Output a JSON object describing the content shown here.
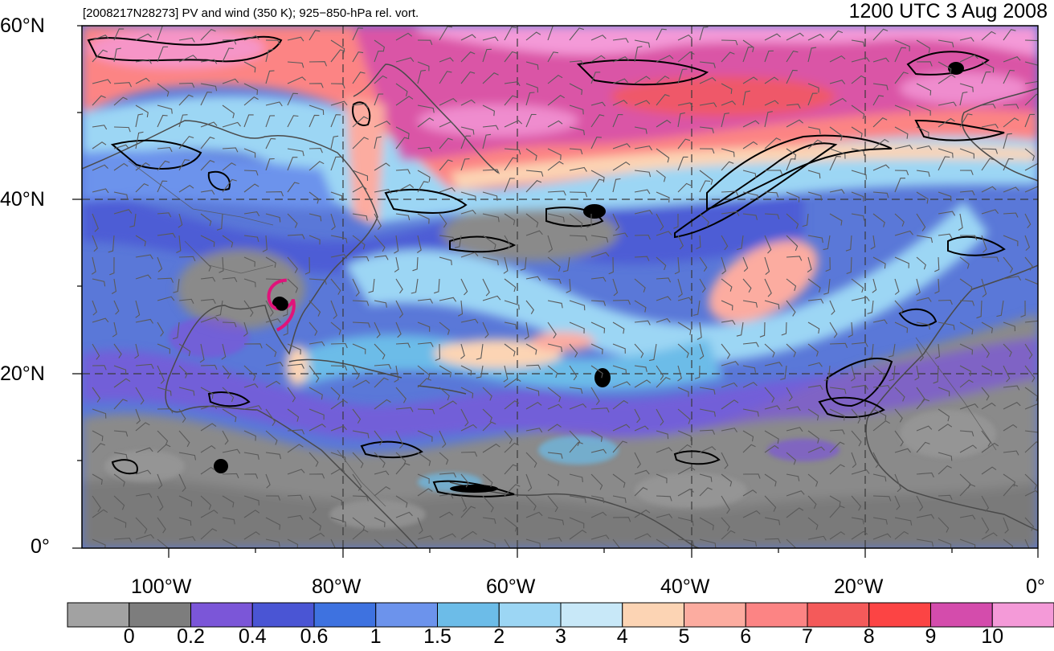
{
  "header": {
    "left_title": "[2008217N28273] PV and wind (350 K); 925−850-hPa rel. vort.",
    "right_title": "1200 UTC 3 Aug 2008"
  },
  "map": {
    "lon_range": [
      -110,
      0
    ],
    "lat_range": [
      0,
      60
    ],
    "lat_labels": [
      "60°N",
      "40°N",
      "20°N",
      "0°"
    ],
    "lon_labels": [
      "100°W",
      "80°W",
      "60°W",
      "40°W",
      "20°W",
      "0°"
    ],
    "storm_symbol": {
      "lon": -87,
      "lat": 28,
      "color": "#e0137a"
    },
    "colors": {
      "background_ocean": "#5a78d8",
      "gridline": "#3a3a3a",
      "coastline": "#4a4a4a",
      "contour": "#000000"
    }
  },
  "colorbar": {
    "labels": [
      "0",
      "0.2",
      "0.4",
      "0.6",
      "1",
      "1.5",
      "2",
      "3",
      "4",
      "5",
      "6",
      "7",
      "8",
      "9",
      "10"
    ],
    "colors": [
      "#a2a2a2",
      "#7d7d7d",
      "#7b56d8",
      "#4a55d4",
      "#3e72e0",
      "#6c93ec",
      "#6cbce8",
      "#9cd6f4",
      "#c8e8f8",
      "#fcd4b4",
      "#fcaca0",
      "#fc8484",
      "#f45a5a",
      "#fc4444",
      "#d44cac",
      "#f49ad8"
    ]
  }
}
